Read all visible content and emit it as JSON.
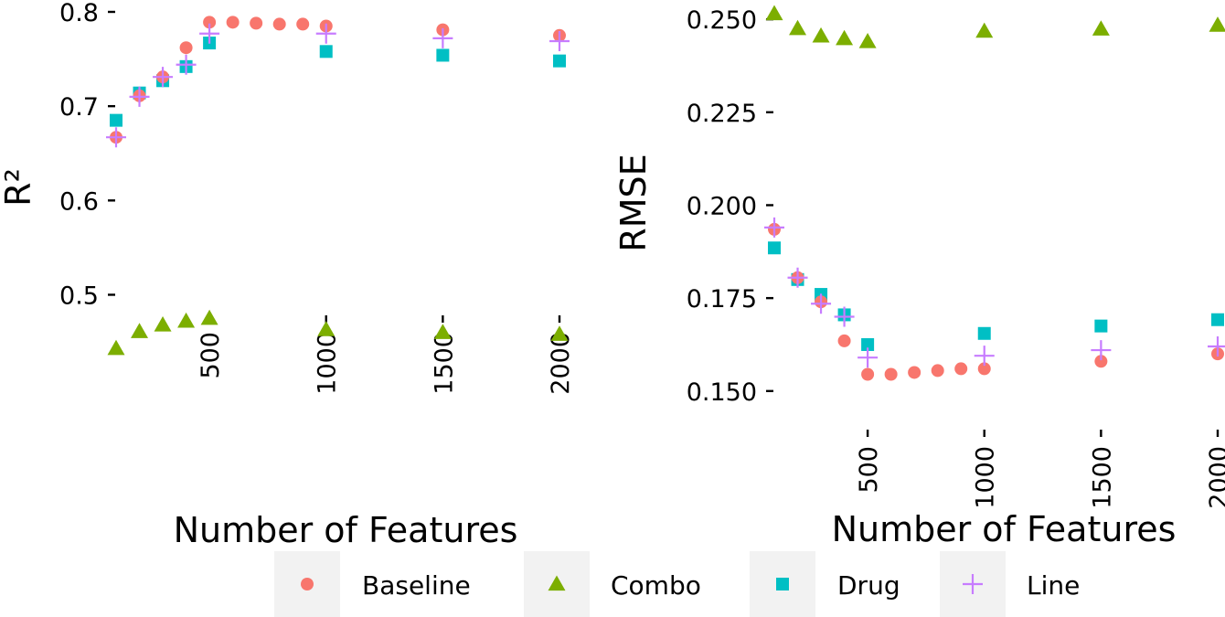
{
  "colors": {
    "Baseline": "#F8766D",
    "Combo": "#7CAE00",
    "Drug": "#00BFC4",
    "Line": "#C77CFF"
  },
  "legend": {
    "items": [
      {
        "name": "Baseline",
        "shape": "circle"
      },
      {
        "name": "Combo",
        "shape": "triangle"
      },
      {
        "name": "Drug",
        "shape": "square"
      },
      {
        "name": "Line",
        "shape": "plus"
      }
    ],
    "placement": "bottom"
  },
  "chart_data": [
    {
      "type": "scatter",
      "title": "",
      "xlabel": "Number of Features",
      "ylabel": "R²",
      "xlim": [
        100,
        2000
      ],
      "ylim": [
        0.42,
        0.8
      ],
      "x_ticks": [
        500,
        1000,
        1500,
        2000
      ],
      "y_ticks": [
        0.5,
        0.6,
        0.7,
        0.8
      ],
      "y_tick_labels": [
        "0.5",
        "0.6",
        "0.7",
        "0.8"
      ],
      "grid": false,
      "series": [
        {
          "name": "Baseline",
          "x": [
            100,
            200,
            300,
            400,
            500,
            600,
            700,
            800,
            900,
            1000,
            1500,
            2000
          ],
          "y": [
            0.667,
            0.711,
            0.731,
            0.762,
            0.789,
            0.789,
            0.788,
            0.787,
            0.787,
            0.785,
            0.781,
            0.775
          ]
        },
        {
          "name": "Combo",
          "x": [
            100,
            200,
            300,
            400,
            500,
            1000,
            1500,
            2000
          ],
          "y": [
            0.443,
            0.461,
            0.468,
            0.472,
            0.475,
            0.463,
            0.46,
            0.458
          ]
        },
        {
          "name": "Drug",
          "x": [
            100,
            200,
            300,
            400,
            500,
            1000,
            1500,
            2000
          ],
          "y": [
            0.685,
            0.714,
            0.727,
            0.742,
            0.767,
            0.758,
            0.754,
            0.748
          ]
        },
        {
          "name": "Line",
          "x": [
            100,
            200,
            300,
            400,
            500,
            1000,
            1500,
            2000
          ],
          "y": [
            0.667,
            0.71,
            0.731,
            0.744,
            0.777,
            0.777,
            0.772,
            0.769
          ]
        }
      ]
    },
    {
      "type": "scatter",
      "title": "",
      "xlabel": "Number of Features",
      "ylabel": "RMSE",
      "xlim": [
        100,
        2000
      ],
      "ylim": [
        0.147,
        0.252
      ],
      "x_ticks": [
        500,
        1000,
        1500,
        2000
      ],
      "y_ticks": [
        0.15,
        0.175,
        0.2,
        0.225,
        0.25
      ],
      "y_tick_labels": [
        "0.150",
        "0.175",
        "0.200",
        "0.225",
        "0.250"
      ],
      "grid": false,
      "series": [
        {
          "name": "Baseline",
          "x": [
            100,
            200,
            300,
            400,
            500,
            600,
            700,
            800,
            900,
            1000,
            1500,
            2000
          ],
          "y": [
            0.1935,
            0.1805,
            0.174,
            0.1635,
            0.1545,
            0.1545,
            0.155,
            0.1555,
            0.156,
            0.156,
            0.158,
            0.16
          ]
        },
        {
          "name": "Combo",
          "x": [
            100,
            200,
            300,
            400,
            500,
            1000,
            1500,
            2000
          ],
          "y": [
            0.2515,
            0.2475,
            0.2455,
            0.2448,
            0.244,
            0.2468,
            0.2474,
            0.2484
          ]
        },
        {
          "name": "Drug",
          "x": [
            100,
            200,
            300,
            400,
            500,
            1000,
            1500,
            2000
          ],
          "y": [
            0.1885,
            0.18,
            0.176,
            0.1705,
            0.1625,
            0.1655,
            0.1675,
            0.1692
          ]
        },
        {
          "name": "Line",
          "x": [
            100,
            200,
            300,
            400,
            500,
            1000,
            1500,
            2000
          ],
          "y": [
            0.194,
            0.1805,
            0.1735,
            0.17,
            0.159,
            0.1595,
            0.161,
            0.162
          ]
        }
      ]
    }
  ]
}
